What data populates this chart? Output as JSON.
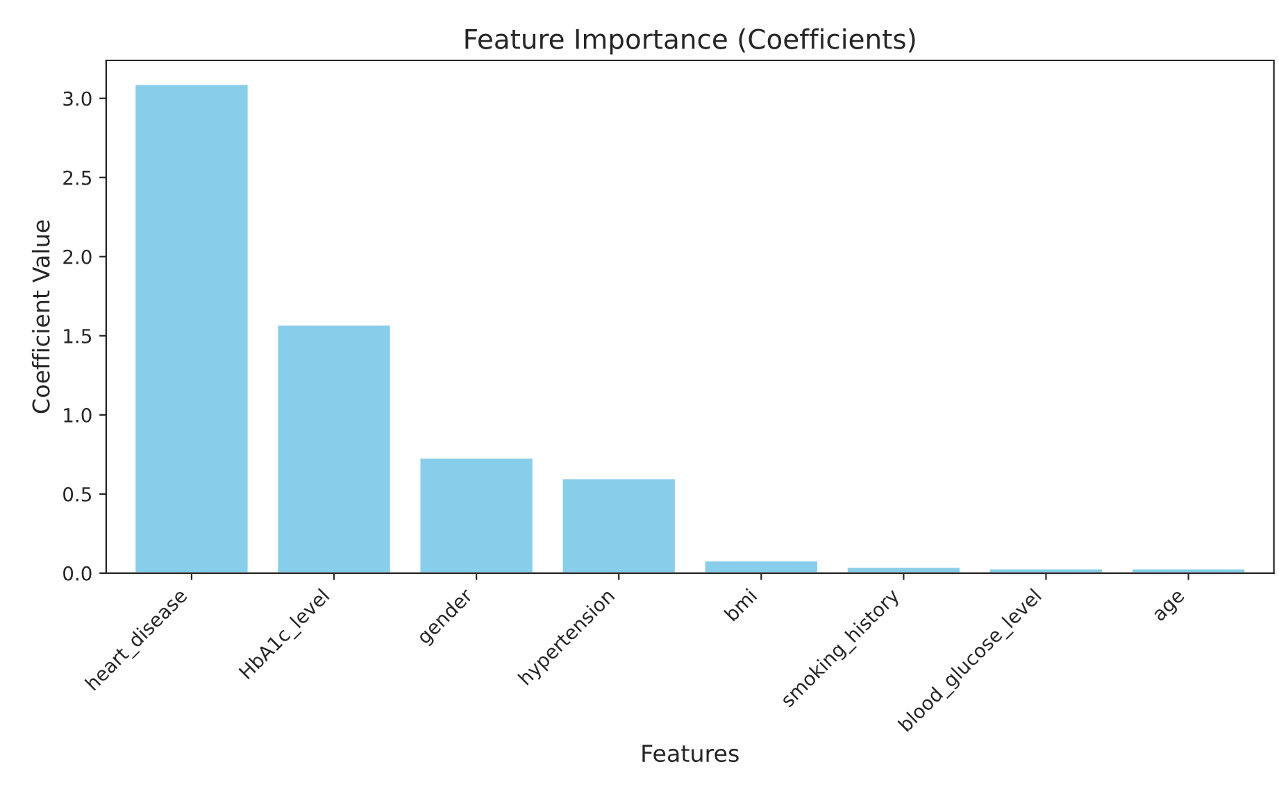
{
  "chart_data": {
    "type": "bar",
    "title": "Feature Importance (Coefficients)",
    "xlabel": "Features",
    "ylabel": "Coefficient Value",
    "categories": [
      "heart_disease",
      "HbA1c_level",
      "gender",
      "hypertension",
      "bmi",
      "smoking_history",
      "blood_glucose_level",
      "age"
    ],
    "values": [
      3.09,
      1.57,
      0.73,
      0.6,
      0.08,
      0.04,
      0.03,
      0.03
    ],
    "color": "#87ceeb",
    "ylim": [
      0,
      3.24
    ],
    "yticks": [
      {
        "value": 0,
        "label": "0.0"
      },
      {
        "value": 0.5,
        "label": "0.5"
      },
      {
        "value": 1,
        "label": "1.0"
      },
      {
        "value": 1.5,
        "label": "1.5"
      },
      {
        "value": 2,
        "label": "2.0"
      },
      {
        "value": 2.5,
        "label": "2.5"
      },
      {
        "value": 3,
        "label": "3.0"
      }
    ],
    "grid": false,
    "legend": false
  }
}
